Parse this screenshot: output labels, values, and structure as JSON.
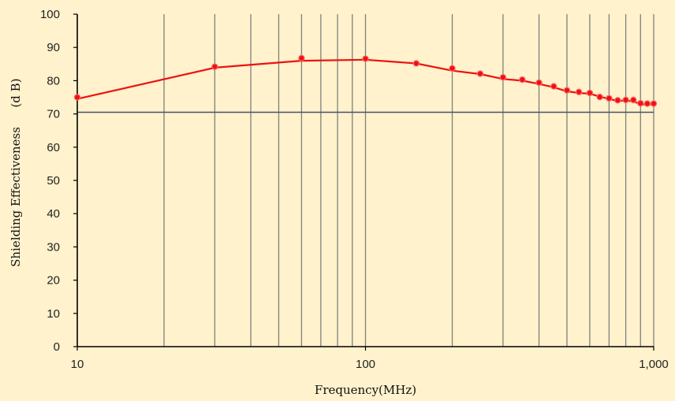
{
  "chart_data": {
    "type": "scatter",
    "xlabel": "Frequency(MHz)",
    "ylabel": "Shielding Effectiveness",
    "ylabel_unit": "(d B)",
    "x_scale": "log",
    "xlim": [
      10,
      1000
    ],
    "ylim": [
      0,
      100
    ],
    "x_ticks": [
      10,
      100,
      1000
    ],
    "x_tick_labels": [
      "10",
      "100",
      "1,000"
    ],
    "y_ticks": [
      0,
      10,
      20,
      30,
      40,
      50,
      60,
      70,
      80,
      90,
      100
    ],
    "y_tick_labels": [
      "0",
      "10",
      "20",
      "30",
      "40",
      "50",
      "60",
      "70",
      "80",
      "90",
      "100"
    ],
    "grid": "vertical",
    "reference_line": 70.5,
    "series": [
      {
        "color": "#ee1111",
        "points": [
          {
            "x": 10,
            "y": 75
          },
          {
            "x": 30,
            "y": 84.2
          },
          {
            "x": 60,
            "y": 86.8
          },
          {
            "x": 100,
            "y": 86.6
          },
          {
            "x": 150,
            "y": 85.2
          },
          {
            "x": 200,
            "y": 83.7
          },
          {
            "x": 250,
            "y": 82.1
          },
          {
            "x": 300,
            "y": 81
          },
          {
            "x": 350,
            "y": 80.3
          },
          {
            "x": 400,
            "y": 79.4
          },
          {
            "x": 450,
            "y": 78.3
          },
          {
            "x": 500,
            "y": 77.1
          },
          {
            "x": 550,
            "y": 76.6
          },
          {
            "x": 600,
            "y": 76.3
          },
          {
            "x": 650,
            "y": 75.1
          },
          {
            "x": 700,
            "y": 74.7
          },
          {
            "x": 750,
            "y": 74.1
          },
          {
            "x": 800,
            "y": 74.2
          },
          {
            "x": 850,
            "y": 74.2
          },
          {
            "x": 900,
            "y": 73.2
          },
          {
            "x": 950,
            "y": 73.1
          },
          {
            "x": 1000,
            "y": 73.1
          }
        ],
        "fit_line": [
          {
            "x": 10,
            "y": 74.5
          },
          {
            "x": 30,
            "y": 83.9
          },
          {
            "x": 60,
            "y": 86
          },
          {
            "x": 100,
            "y": 86.3
          },
          {
            "x": 150,
            "y": 85.2
          },
          {
            "x": 200,
            "y": 83
          },
          {
            "x": 250,
            "y": 82
          },
          {
            "x": 300,
            "y": 80.5
          },
          {
            "x": 350,
            "y": 80
          },
          {
            "x": 400,
            "y": 79
          },
          {
            "x": 450,
            "y": 78
          },
          {
            "x": 500,
            "y": 76.8
          },
          {
            "x": 550,
            "y": 76.3
          },
          {
            "x": 600,
            "y": 76.1
          },
          {
            "x": 650,
            "y": 75.2
          },
          {
            "x": 700,
            "y": 74.5
          },
          {
            "x": 750,
            "y": 73.9
          },
          {
            "x": 800,
            "y": 74
          },
          {
            "x": 850,
            "y": 73.8
          },
          {
            "x": 900,
            "y": 72.9
          },
          {
            "x": 950,
            "y": 72.8
          },
          {
            "x": 1000,
            "y": 72.9
          }
        ]
      }
    ],
    "colors": {
      "background": "#fff2cc",
      "grid": "#7f7f7f",
      "reference": "#44546a",
      "axis": "#000000",
      "series": "#ee1111"
    }
  }
}
